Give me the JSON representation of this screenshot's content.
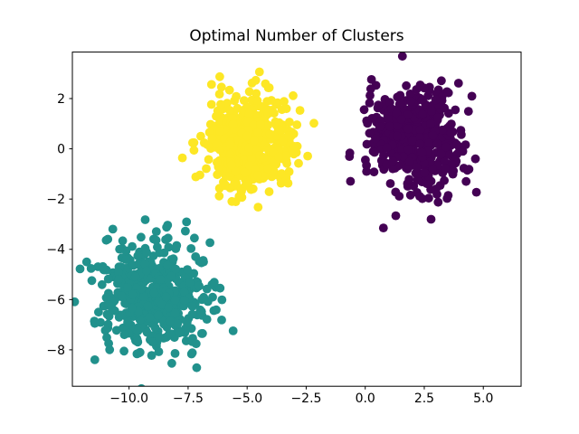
{
  "figure": {
    "background": "#ffffff"
  },
  "chart_data": {
    "type": "scatter",
    "title": "Optimal Number of Clusters",
    "xlabel": "",
    "ylabel": "",
    "xlim": [
      -12.4,
      6.6
    ],
    "ylim": [
      -9.45,
      3.85
    ],
    "x_ticks": [
      -10.0,
      -7.5,
      -5.0,
      -2.5,
      0.0,
      2.5,
      5.0
    ],
    "x_tick_labels": [
      "−10.0",
      "−7.5",
      "−5.0",
      "−2.5",
      "0.0",
      "2.5",
      "5.0"
    ],
    "y_ticks": [
      -8,
      -6,
      -4,
      -2,
      0,
      2
    ],
    "y_tick_labels": [
      "−8",
      "−6",
      "−4",
      "−2",
      "0",
      "2"
    ],
    "grid": false,
    "legend": false,
    "colormap": "viridis",
    "text_color": "#000000",
    "spine_color": "#000000",
    "marker": {
      "shape": "circle",
      "radius_px": 4.9
    },
    "series": [
      {
        "name": "cluster-purple",
        "color": "#440154",
        "n_points": 500,
        "center": [
          2.1,
          0.45
        ],
        "std": [
          1.05,
          1.05
        ]
      },
      {
        "name": "cluster-teal",
        "color": "#21918c",
        "n_points": 500,
        "center": [
          -9.0,
          -5.8
        ],
        "std": [
          1.1,
          1.1
        ]
      },
      {
        "name": "cluster-yellow",
        "color": "#fde725",
        "n_points": 500,
        "center": [
          -4.85,
          0.2
        ],
        "std": [
          0.95,
          0.95
        ]
      }
    ]
  }
}
